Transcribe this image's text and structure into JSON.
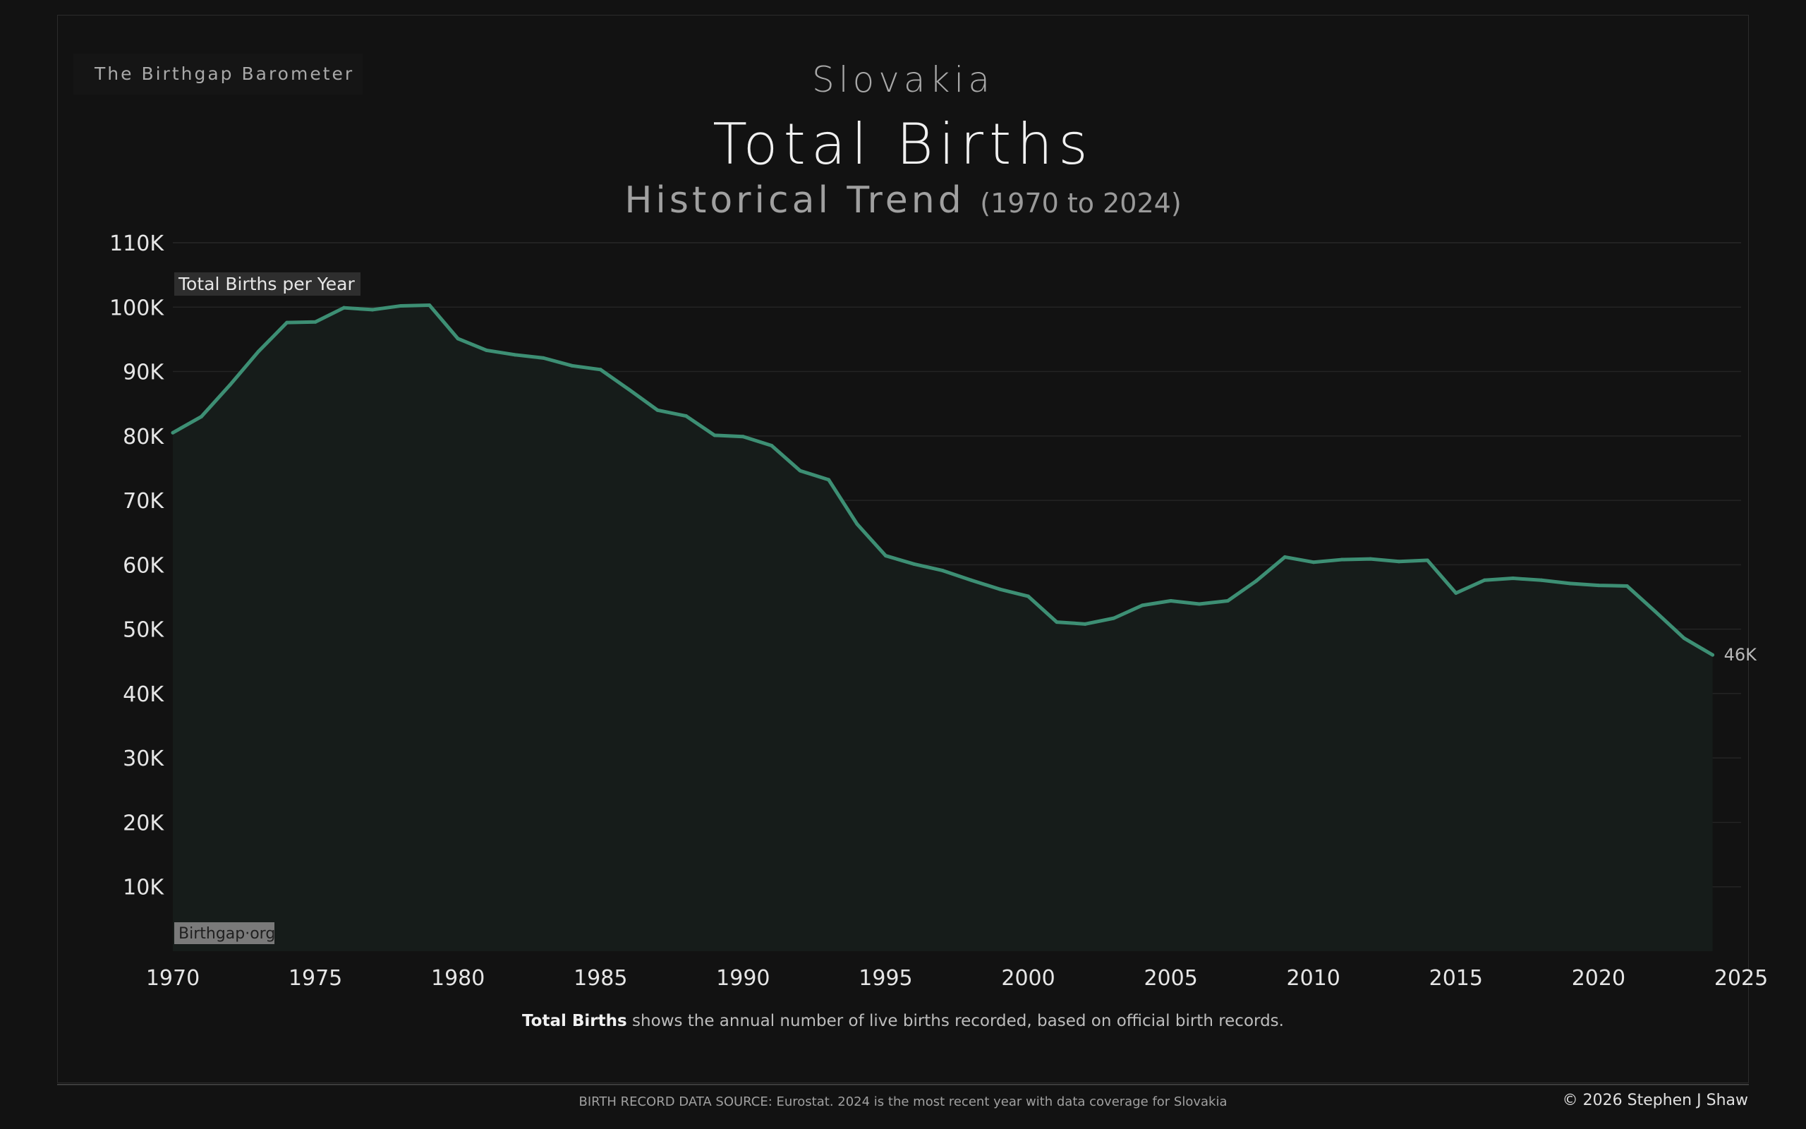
{
  "brand": "The Birthgap Barometer",
  "country": "Slovakia",
  "title": "Total Births",
  "subtitle": "Historical Trend",
  "subtitle_range": "(1970 to 2024)",
  "note_bold": "Total Births",
  "note_rest": " shows the annual number of live births recorded, based on official birth records.",
  "source": "BIRTH RECORD DATA SOURCE: Eurostat. 2024 is the most recent year with data coverage for Slovakia",
  "copyright": "© 2026 Stephen J Shaw",
  "colors": {
    "line": "#3d8f74",
    "area": "#161c1a",
    "background": "#121212",
    "grid": "#242424"
  },
  "chart_data": {
    "type": "area",
    "series_label": "Total Births per Year",
    "watermark": "Birthgap·org",
    "end_label": "46K",
    "x": [
      1970,
      1971,
      1972,
      1973,
      1974,
      1975,
      1976,
      1977,
      1978,
      1979,
      1980,
      1981,
      1982,
      1983,
      1984,
      1985,
      1986,
      1987,
      1988,
      1989,
      1990,
      1991,
      1992,
      1993,
      1994,
      1995,
      1996,
      1997,
      1998,
      1999,
      2000,
      2001,
      2002,
      2003,
      2004,
      2005,
      2006,
      2007,
      2008,
      2009,
      2010,
      2011,
      2012,
      2013,
      2014,
      2015,
      2016,
      2017,
      2018,
      2019,
      2020,
      2021,
      2022,
      2023,
      2024
    ],
    "y": [
      80500,
      83000,
      87900,
      93100,
      97600,
      97700,
      99900,
      99600,
      100200,
      100300,
      95100,
      93300,
      92600,
      92100,
      90900,
      90300,
      87200,
      84000,
      83100,
      80100,
      79900,
      78500,
      74600,
      73200,
      66300,
      61400,
      60100,
      59100,
      57600,
      56200,
      55100,
      51100,
      50800,
      51700,
      53700,
      54400,
      53900,
      54400,
      57500,
      61200,
      60400,
      60800,
      60900,
      60500,
      60700,
      55600,
      57600,
      57900,
      57600,
      57100,
      56800,
      56700,
      52700,
      48600,
      46000
    ],
    "xticks": [
      "1970",
      "1975",
      "1980",
      "1985",
      "1990",
      "1995",
      "2000",
      "2005",
      "2010",
      "2015",
      "2020",
      "2025"
    ],
    "yticks": [
      "10K",
      "20K",
      "30K",
      "40K",
      "50K",
      "60K",
      "70K",
      "80K",
      "90K",
      "100K",
      "110K"
    ],
    "xlim": [
      1970,
      2025
    ],
    "ylim": [
      0,
      110000
    ],
    "grid": true
  }
}
